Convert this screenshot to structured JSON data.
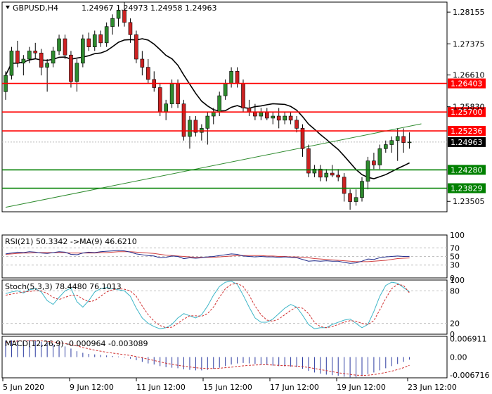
{
  "header": {
    "symbol": "GBPUSD,H4",
    "ohlc": "1.24967 1.24973 1.24958 1.24963"
  },
  "colors": {
    "bull": "#2e8b2e",
    "bear": "#cc2222",
    "resistance": "#ff0000",
    "support": "#008000",
    "trendline": "#2e8b2e",
    "ma": "#000000",
    "price_label_bg": "#000000",
    "rsi_line": "#1f2a8a",
    "rsi_ma": "#d04040",
    "stoch_main": "#3fb6c8",
    "stoch_signal": "#d03030",
    "macd_hist": "#2b3aa0",
    "macd_signal": "#d03030"
  },
  "chart_data": {
    "type": "candlestick",
    "title": "GBPUSD,H4",
    "x_ticks": [
      "5 Jun 2020",
      "9 Jun 12:00",
      "11 Jun 12:00",
      "15 Jun 12:00",
      "17 Jun 12:00",
      "19 Jun 12:00",
      "23 Jun 12:00"
    ],
    "y_ticks": [
      "1.28155",
      "1.27375",
      "1.26610",
      "1.25830",
      "1.23505"
    ],
    "ylim": [
      1.2325,
      1.284
    ],
    "current_price": "1.24963",
    "current_price_value": 1.24963,
    "horizontal_levels": [
      {
        "label": "1.26403",
        "value": 1.26403,
        "kind": "resistance"
      },
      {
        "label": "1.25700",
        "value": 1.257,
        "kind": "resistance"
      },
      {
        "label": "1.25236",
        "value": 1.25236,
        "kind": "resistance"
      },
      {
        "label": "1.24280",
        "value": 1.2428,
        "kind": "support"
      },
      {
        "label": "1.23829",
        "value": 1.23829,
        "kind": "support"
      }
    ],
    "trendline": {
      "start": [
        0,
        1.2336
      ],
      "end": [
        70,
        1.2541
      ]
    },
    "candles": [
      [
        1.262,
        1.267,
        1.26,
        1.266
      ],
      [
        1.266,
        1.273,
        1.265,
        1.272
      ],
      [
        1.272,
        1.2745,
        1.268,
        1.269
      ],
      [
        1.269,
        1.271,
        1.266,
        1.27
      ],
      [
        1.27,
        1.273,
        1.269,
        1.272
      ],
      [
        1.272,
        1.274,
        1.27,
        1.2715
      ],
      [
        1.2715,
        1.2725,
        1.266,
        1.268
      ],
      [
        1.268,
        1.27,
        1.262,
        1.269
      ],
      [
        1.269,
        1.273,
        1.268,
        1.272
      ],
      [
        1.272,
        1.276,
        1.271,
        1.275
      ],
      [
        1.275,
        1.276,
        1.27,
        1.271
      ],
      [
        1.271,
        1.272,
        1.263,
        1.2645
      ],
      [
        1.2645,
        1.27,
        1.262,
        1.269
      ],
      [
        1.269,
        1.276,
        1.268,
        1.275
      ],
      [
        1.275,
        1.2765,
        1.272,
        1.273
      ],
      [
        1.273,
        1.277,
        1.272,
        1.276
      ],
      [
        1.276,
        1.277,
        1.273,
        1.274
      ],
      [
        1.274,
        1.279,
        1.273,
        1.278
      ],
      [
        1.278,
        1.281,
        1.276,
        1.28
      ],
      [
        1.28,
        1.283,
        1.278,
        1.282
      ],
      [
        1.282,
        1.284,
        1.278,
        1.279
      ],
      [
        1.279,
        1.28,
        1.274,
        1.276
      ],
      [
        1.276,
        1.277,
        1.269,
        1.27
      ],
      [
        1.27,
        1.272,
        1.266,
        1.268
      ],
      [
        1.268,
        1.27,
        1.264,
        1.265
      ],
      [
        1.265,
        1.267,
        1.262,
        1.263
      ],
      [
        1.263,
        1.264,
        1.256,
        1.257
      ],
      [
        1.257,
        1.26,
        1.255,
        1.259
      ],
      [
        1.259,
        1.265,
        1.258,
        1.264
      ],
      [
        1.264,
        1.265,
        1.258,
        1.259
      ],
      [
        1.259,
        1.26,
        1.25,
        1.251
      ],
      [
        1.251,
        1.256,
        1.248,
        1.255
      ],
      [
        1.255,
        1.256,
        1.251,
        1.252
      ],
      [
        1.252,
        1.254,
        1.25,
        1.253
      ],
      [
        1.253,
        1.257,
        1.249,
        1.256
      ],
      [
        1.256,
        1.258,
        1.254,
        1.257
      ],
      [
        1.257,
        1.262,
        1.256,
        1.261
      ],
      [
        1.261,
        1.265,
        1.26,
        1.264
      ],
      [
        1.264,
        1.268,
        1.263,
        1.267
      ],
      [
        1.267,
        1.268,
        1.263,
        1.264
      ],
      [
        1.264,
        1.265,
        1.257,
        1.258
      ],
      [
        1.258,
        1.26,
        1.256,
        1.257
      ],
      [
        1.257,
        1.259,
        1.255,
        1.256
      ],
      [
        1.256,
        1.258,
        1.255,
        1.257
      ],
      [
        1.257,
        1.258,
        1.255,
        1.2555
      ],
      [
        1.2555,
        1.257,
        1.254,
        1.256
      ],
      [
        1.256,
        1.258,
        1.253,
        1.255
      ],
      [
        1.255,
        1.257,
        1.254,
        1.256
      ],
      [
        1.256,
        1.257,
        1.254,
        1.255
      ],
      [
        1.255,
        1.256,
        1.252,
        1.253
      ],
      [
        1.253,
        1.254,
        1.246,
        1.248
      ],
      [
        1.248,
        1.249,
        1.241,
        1.242
      ],
      [
        1.242,
        1.244,
        1.241,
        1.243
      ],
      [
        1.243,
        1.244,
        1.24,
        1.241
      ],
      [
        1.241,
        1.243,
        1.24,
        1.242
      ],
      [
        1.242,
        1.244,
        1.241,
        1.2415
      ],
      [
        1.2415,
        1.243,
        1.24,
        1.241
      ],
      [
        1.241,
        1.242,
        1.235,
        1.237
      ],
      [
        1.237,
        1.238,
        1.233,
        1.235
      ],
      [
        1.235,
        1.238,
        1.234,
        1.236
      ],
      [
        1.236,
        1.241,
        1.235,
        1.24
      ],
      [
        1.24,
        1.246,
        1.238,
        1.245
      ],
      [
        1.245,
        1.247,
        1.243,
        1.244
      ],
      [
        1.244,
        1.249,
        1.243,
        1.248
      ],
      [
        1.248,
        1.25,
        1.247,
        1.249
      ],
      [
        1.249,
        1.251,
        1.247,
        1.25
      ],
      [
        1.25,
        1.253,
        1.245,
        1.251
      ],
      [
        1.251,
        1.253,
        1.247,
        1.2495
      ],
      [
        1.2495,
        1.252,
        1.248,
        1.24963
      ]
    ],
    "indicators": {
      "rsi": {
        "label": "RSI(21) 50.3342  ->MA(9) 46.6210",
        "levels": [
          70,
          50,
          30
        ],
        "scale_ticks": [
          "100",
          "70",
          "50",
          "30",
          "0"
        ],
        "rsi": [
          56,
          58,
          60,
          59,
          61,
          60,
          58,
          57,
          59,
          61,
          60,
          55,
          54,
          58,
          60,
          59,
          61,
          62,
          63,
          64,
          63,
          60,
          56,
          54,
          52,
          51,
          47,
          48,
          51,
          50,
          45,
          47,
          46,
          47,
          49,
          50,
          52,
          54,
          56,
          55,
          51,
          50,
          49,
          50,
          49,
          49,
          48,
          49,
          48,
          47,
          43,
          39,
          40,
          39,
          40,
          39,
          39,
          36,
          34,
          35,
          39,
          44,
          43,
          47,
          49,
          50,
          51,
          50,
          50.3
        ],
        "ma": [
          55,
          56,
          57,
          58,
          58,
          59,
          59,
          59,
          59,
          59,
          59,
          58,
          58,
          58,
          58,
          58,
          59,
          59,
          60,
          61,
          61,
          61,
          60,
          59,
          58,
          57,
          55,
          53,
          52,
          51,
          50,
          49,
          48,
          48,
          48,
          48,
          49,
          50,
          51,
          52,
          52,
          52,
          52,
          52,
          51,
          51,
          50,
          50,
          49,
          49,
          48,
          47,
          45,
          44,
          43,
          42,
          41,
          40,
          39,
          38,
          38,
          38,
          39,
          40,
          41,
          43,
          45,
          46,
          46.6
        ]
      },
      "stoch": {
        "label": "Stoch(5,3,3) 78.4480 76.1013",
        "levels": [
          80,
          20
        ],
        "scale_ticks": [
          "100",
          "80",
          "20",
          "0"
        ],
        "k": [
          75,
          78,
          80,
          76,
          82,
          84,
          78,
          62,
          55,
          68,
          80,
          85,
          60,
          50,
          62,
          78,
          84,
          86,
          84,
          82,
          80,
          70,
          48,
          30,
          20,
          14,
          10,
          12,
          18,
          30,
          38,
          34,
          30,
          36,
          52,
          72,
          88,
          96,
          98,
          92,
          72,
          50,
          30,
          22,
          22,
          28,
          38,
          48,
          55,
          50,
          35,
          18,
          10,
          12,
          12,
          18,
          22,
          26,
          28,
          20,
          12,
          18,
          42,
          70,
          90,
          96,
          94,
          86,
          78.4
        ],
        "d": [
          72,
          74,
          76,
          78,
          79,
          80,
          80,
          75,
          68,
          64,
          68,
          72,
          72,
          65,
          60,
          62,
          70,
          78,
          82,
          84,
          83,
          80,
          70,
          52,
          36,
          24,
          16,
          12,
          13,
          20,
          28,
          34,
          34,
          33,
          38,
          50,
          68,
          84,
          92,
          94,
          88,
          72,
          52,
          36,
          26,
          24,
          28,
          36,
          44,
          50,
          48,
          38,
          22,
          14,
          12,
          14,
          18,
          22,
          25,
          24,
          20,
          18,
          25,
          45,
          66,
          84,
          92,
          90,
          76.1
        ]
      },
      "macd": {
        "label": "MACD(12,26,9) -0.000964 -0.003089",
        "scale_ticks": [
          "0.006911",
          "0.00",
          "-0.006716"
        ],
        "ylim": [
          -0.0078,
          0.0078
        ],
        "hist": [
          0.0062,
          0.0063,
          0.0064,
          0.0062,
          0.0063,
          0.0062,
          0.0058,
          0.0052,
          0.0048,
          0.0044,
          0.004,
          0.0032,
          0.0022,
          0.0016,
          0.0012,
          0.001,
          0.0008,
          0.0006,
          0.0004,
          0.0002,
          -0.0002,
          -0.0006,
          -0.0012,
          -0.0018,
          -0.0024,
          -0.0028,
          -0.0034,
          -0.0038,
          -0.004,
          -0.0042,
          -0.0046,
          -0.0048,
          -0.005,
          -0.005,
          -0.0048,
          -0.0044,
          -0.004,
          -0.0034,
          -0.0028,
          -0.0024,
          -0.0022,
          -0.0024,
          -0.0026,
          -0.0028,
          -0.003,
          -0.0032,
          -0.0034,
          -0.0035,
          -0.0036,
          -0.0038,
          -0.0044,
          -0.0052,
          -0.0058,
          -0.0062,
          -0.0066,
          -0.0068,
          -0.007,
          -0.0074,
          -0.0076,
          -0.0076,
          -0.0072,
          -0.0064,
          -0.0058,
          -0.005,
          -0.0042,
          -0.0034,
          -0.0026,
          -0.0018,
          -0.000964
        ],
        "signal": [
          0.0055,
          0.0058,
          0.006,
          0.0061,
          0.0062,
          0.0062,
          0.0061,
          0.0059,
          0.0057,
          0.0054,
          0.0051,
          0.0047,
          0.0042,
          0.0036,
          0.0031,
          0.0026,
          0.0022,
          0.0018,
          0.0015,
          0.0012,
          0.0009,
          0.0006,
          0.0002,
          -0.0003,
          -0.0008,
          -0.0013,
          -0.0018,
          -0.0023,
          -0.0027,
          -0.0031,
          -0.0034,
          -0.0037,
          -0.004,
          -0.0042,
          -0.0043,
          -0.0043,
          -0.0042,
          -0.004,
          -0.0038,
          -0.0035,
          -0.0033,
          -0.0031,
          -0.003,
          -0.0029,
          -0.0029,
          -0.003,
          -0.0031,
          -0.0032,
          -0.0033,
          -0.0034,
          -0.0036,
          -0.0039,
          -0.0043,
          -0.0047,
          -0.0051,
          -0.0055,
          -0.0059,
          -0.0062,
          -0.0065,
          -0.0068,
          -0.0069,
          -0.0068,
          -0.0066,
          -0.0062,
          -0.0058,
          -0.0053,
          -0.0047,
          -0.004,
          -0.003089
        ]
      }
    }
  }
}
